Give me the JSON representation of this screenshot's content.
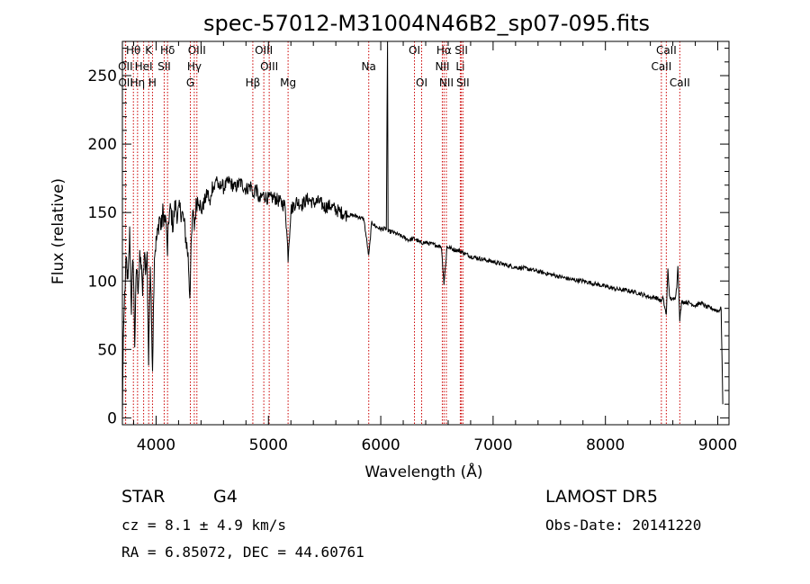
{
  "chart_data": {
    "type": "line",
    "title": "spec-57012-M31004N46B2_sp07-095.fits",
    "xlabel": "Wavelength (Å)",
    "ylabel": "Flux (relative)",
    "xlim": [
      3700,
      9100
    ],
    "ylim": [
      -5,
      275
    ],
    "x_ticks": [
      4000,
      5000,
      6000,
      7000,
      8000,
      9000
    ],
    "y_ticks": [
      0,
      50,
      100,
      150,
      200,
      250
    ],
    "grid": false,
    "colors": {
      "spectrum": "#000000",
      "line_markers": "#cc0000",
      "axes": "#000000"
    },
    "spectrum_anchors": [
      [
        3700,
        0
      ],
      [
        3708,
        60
      ],
      [
        3720,
        90
      ],
      [
        3735,
        115
      ],
      [
        3750,
        98
      ],
      [
        3765,
        135
      ],
      [
        3780,
        80
      ],
      [
        3795,
        120
      ],
      [
        3810,
        55
      ],
      [
        3825,
        110
      ],
      [
        3840,
        96
      ],
      [
        3855,
        115
      ],
      [
        3870,
        112
      ],
      [
        3880,
        90
      ],
      [
        3895,
        118
      ],
      [
        3910,
        108
      ],
      [
        3920,
        120
      ],
      [
        3933,
        40
      ],
      [
        3948,
        112
      ],
      [
        3968,
        38
      ],
      [
        3985,
        120
      ],
      [
        4000,
        128
      ],
      [
        4015,
        135
      ],
      [
        4030,
        148
      ],
      [
        4045,
        138
      ],
      [
        4060,
        150
      ],
      [
        4075,
        145
      ],
      [
        4090,
        142
      ],
      [
        4101,
        122
      ],
      [
        4115,
        148
      ],
      [
        4130,
        152
      ],
      [
        4150,
        140
      ],
      [
        4170,
        156
      ],
      [
        4190,
        148
      ],
      [
        4210,
        152
      ],
      [
        4230,
        150
      ],
      [
        4250,
        142
      ],
      [
        4270,
        128
      ],
      [
        4285,
        118
      ],
      [
        4300,
        90
      ],
      [
        4315,
        130
      ],
      [
        4330,
        152
      ],
      [
        4340,
        140
      ],
      [
        4360,
        158
      ],
      [
        4380,
        162
      ],
      [
        4400,
        150
      ],
      [
        4430,
        158
      ],
      [
        4460,
        165
      ],
      [
        4480,
        155
      ],
      [
        4500,
        170
      ],
      [
        4520,
        168
      ],
      [
        4540,
        177
      ],
      [
        4560,
        165
      ],
      [
        4580,
        172
      ],
      [
        4600,
        168
      ],
      [
        4650,
        173
      ],
      [
        4700,
        168
      ],
      [
        4750,
        172
      ],
      [
        4800,
        167
      ],
      [
        4850,
        170
      ],
      [
        4861,
        160
      ],
      [
        4880,
        168
      ],
      [
        4900,
        165
      ],
      [
        4920,
        158
      ],
      [
        4950,
        163
      ],
      [
        5000,
        160
      ],
      [
        5050,
        161
      ],
      [
        5100,
        158
      ],
      [
        5150,
        155
      ],
      [
        5175,
        118
      ],
      [
        5200,
        152
      ],
      [
        5250,
        158
      ],
      [
        5300,
        156
      ],
      [
        5350,
        160
      ],
      [
        5400,
        157
      ],
      [
        5450,
        158
      ],
      [
        5500,
        154
      ],
      [
        5550,
        155
      ],
      [
        5600,
        152
      ],
      [
        5650,
        150
      ],
      [
        5700,
        148
      ],
      [
        5750,
        148
      ],
      [
        5800,
        147
      ],
      [
        5850,
        145
      ],
      [
        5893,
        118
      ],
      [
        5920,
        143
      ],
      [
        5950,
        140
      ],
      [
        6000,
        138
      ],
      [
        6050,
        138
      ],
      [
        6060,
        275
      ],
      [
        6065,
        136
      ],
      [
        6100,
        136
      ],
      [
        6150,
        134
      ],
      [
        6200,
        132
      ],
      [
        6250,
        130
      ],
      [
        6300,
        131
      ],
      [
        6350,
        128
      ],
      [
        6400,
        128
      ],
      [
        6450,
        127
      ],
      [
        6500,
        126
      ],
      [
        6540,
        125
      ],
      [
        6563,
        98
      ],
      [
        6590,
        125
      ],
      [
        6650,
        123
      ],
      [
        6700,
        122
      ],
      [
        6750,
        120
      ],
      [
        6800,
        118
      ],
      [
        6900,
        116
      ],
      [
        7000,
        114
      ],
      [
        7100,
        112
      ],
      [
        7200,
        110
      ],
      [
        7300,
        109
      ],
      [
        7400,
        107
      ],
      [
        7500,
        105
      ],
      [
        7600,
        103
      ],
      [
        7700,
        101
      ],
      [
        7800,
        100
      ],
      [
        7900,
        98
      ],
      [
        8000,
        96
      ],
      [
        8100,
        94
      ],
      [
        8200,
        93
      ],
      [
        8300,
        91
      ],
      [
        8400,
        88
      ],
      [
        8450,
        88
      ],
      [
        8498,
        85
      ],
      [
        8510,
        88
      ],
      [
        8542,
        75
      ],
      [
        8556,
        110
      ],
      [
        8570,
        88
      ],
      [
        8600,
        86
      ],
      [
        8620,
        88
      ],
      [
        8635,
        95
      ],
      [
        8645,
        112
      ],
      [
        8662,
        72
      ],
      [
        8680,
        85
      ],
      [
        8750,
        84
      ],
      [
        8800,
        82
      ],
      [
        8850,
        84
      ],
      [
        8900,
        81
      ],
      [
        8950,
        80
      ],
      [
        9000,
        78
      ],
      [
        9030,
        80
      ],
      [
        9045,
        10
      ]
    ],
    "spectral_lines": [
      {
        "label": "Hθ",
        "x": 3798,
        "row": 0
      },
      {
        "label": "K",
        "x": 3934,
        "row": 0
      },
      {
        "label": "Hδ",
        "x": 4102,
        "row": 0
      },
      {
        "label": "OIII",
        "x": 4363,
        "row": 0
      },
      {
        "label": "OIII",
        "x": 4959,
        "row": 0
      },
      {
        "label": "Na",
        "x": 5893,
        "row": 1
      },
      {
        "label": "OI",
        "x": 6300,
        "row": 0
      },
      {
        "label": "Hα",
        "x": 6563,
        "row": 0
      },
      {
        "label": "SII",
        "x": 6717,
        "row": 0
      },
      {
        "label": "CaII",
        "x": 8542,
        "row": 0
      },
      {
        "label": "OII",
        "x": 3727,
        "row": 1
      },
      {
        "label": "HeI",
        "x": 3889,
        "row": 1
      },
      {
        "label": "SII",
        "x": 4072,
        "row": 1
      },
      {
        "label": "Hγ",
        "x": 4340,
        "row": 1
      },
      {
        "label": "OIII",
        "x": 5007,
        "row": 1
      },
      {
        "label": "NII",
        "x": 6548,
        "row": 1
      },
      {
        "label": "Li",
        "x": 6708,
        "row": 1
      },
      {
        "label": "CaII",
        "x": 8498,
        "row": 1
      },
      {
        "label": "OII",
        "x": 3729,
        "row": 2
      },
      {
        "label": "Hη",
        "x": 3835,
        "row": 2
      },
      {
        "label": "H",
        "x": 3968,
        "row": 2
      },
      {
        "label": "G",
        "x": 4305,
        "row": 2
      },
      {
        "label": "Hβ",
        "x": 4861,
        "row": 2
      },
      {
        "label": "Mg",
        "x": 5175,
        "row": 2
      },
      {
        "label": "OI",
        "x": 6364,
        "row": 2
      },
      {
        "label": "NII",
        "x": 6584,
        "row": 2
      },
      {
        "label": "SII",
        "x": 6731,
        "row": 2
      },
      {
        "label": "CaII",
        "x": 8662,
        "row": 2
      }
    ]
  },
  "info": {
    "object_class": "STAR",
    "subclass": "G4",
    "survey": "LAMOST  DR5",
    "redshift": "cz = 8.1 ± 4.9 km/s",
    "obs_date": "Obs-Date: 20141220",
    "coords": "RA =    6.85072, DEC =  44.60761"
  }
}
